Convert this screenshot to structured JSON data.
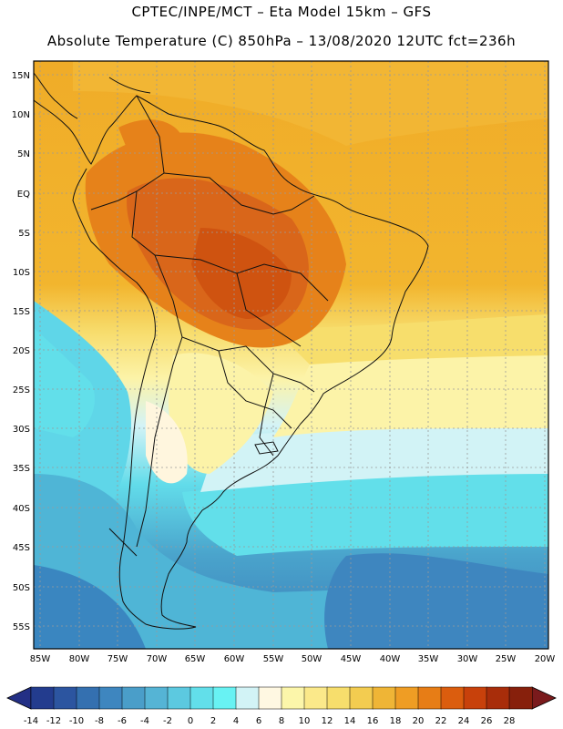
{
  "header": {
    "line1": "CPTEC/INPE/MCT –  Eta Model 15km – GFS",
    "line2": "Absolute Temperature (C) 850hPa – 13/08/2020 12UTC fct=236h"
  },
  "map": {
    "lat_labels": [
      "15N",
      "10N",
      "5N",
      "EQ",
      "5S",
      "10S",
      "15S",
      "20S",
      "25S",
      "30S",
      "35S",
      "40S",
      "45S",
      "50S",
      "55S"
    ],
    "lon_labels": [
      "85W",
      "80W",
      "75W",
      "70W",
      "65W",
      "60W",
      "55W",
      "50W",
      "45W",
      "40W",
      "35W",
      "30W",
      "25W",
      "20W"
    ]
  },
  "colorbar": {
    "labels": [
      "-14",
      "-12",
      "-10",
      "-8",
      "-6",
      "-4",
      "-2",
      "0",
      "2",
      "4",
      "6",
      "8",
      "10",
      "12",
      "14",
      "16",
      "18",
      "20",
      "22",
      "24",
      "26",
      "28"
    ],
    "colors": [
      "#233c8e",
      "#2c55a0",
      "#3470b0",
      "#3e86bf",
      "#4a9ec9",
      "#55b4d5",
      "#5cc9e0",
      "#62dfea",
      "#68f2f3",
      "#d2f3f6",
      "#fff8e2",
      "#fcf6aa",
      "#fbe98a",
      "#f7de6c",
      "#f3cc50",
      "#efb536",
      "#ef9d24",
      "#e77d16",
      "#db5d0e",
      "#c8410b",
      "#a82d0a",
      "#87200c"
    ],
    "under_color": "#232f85",
    "over_color": "#7a1a1c"
  }
}
